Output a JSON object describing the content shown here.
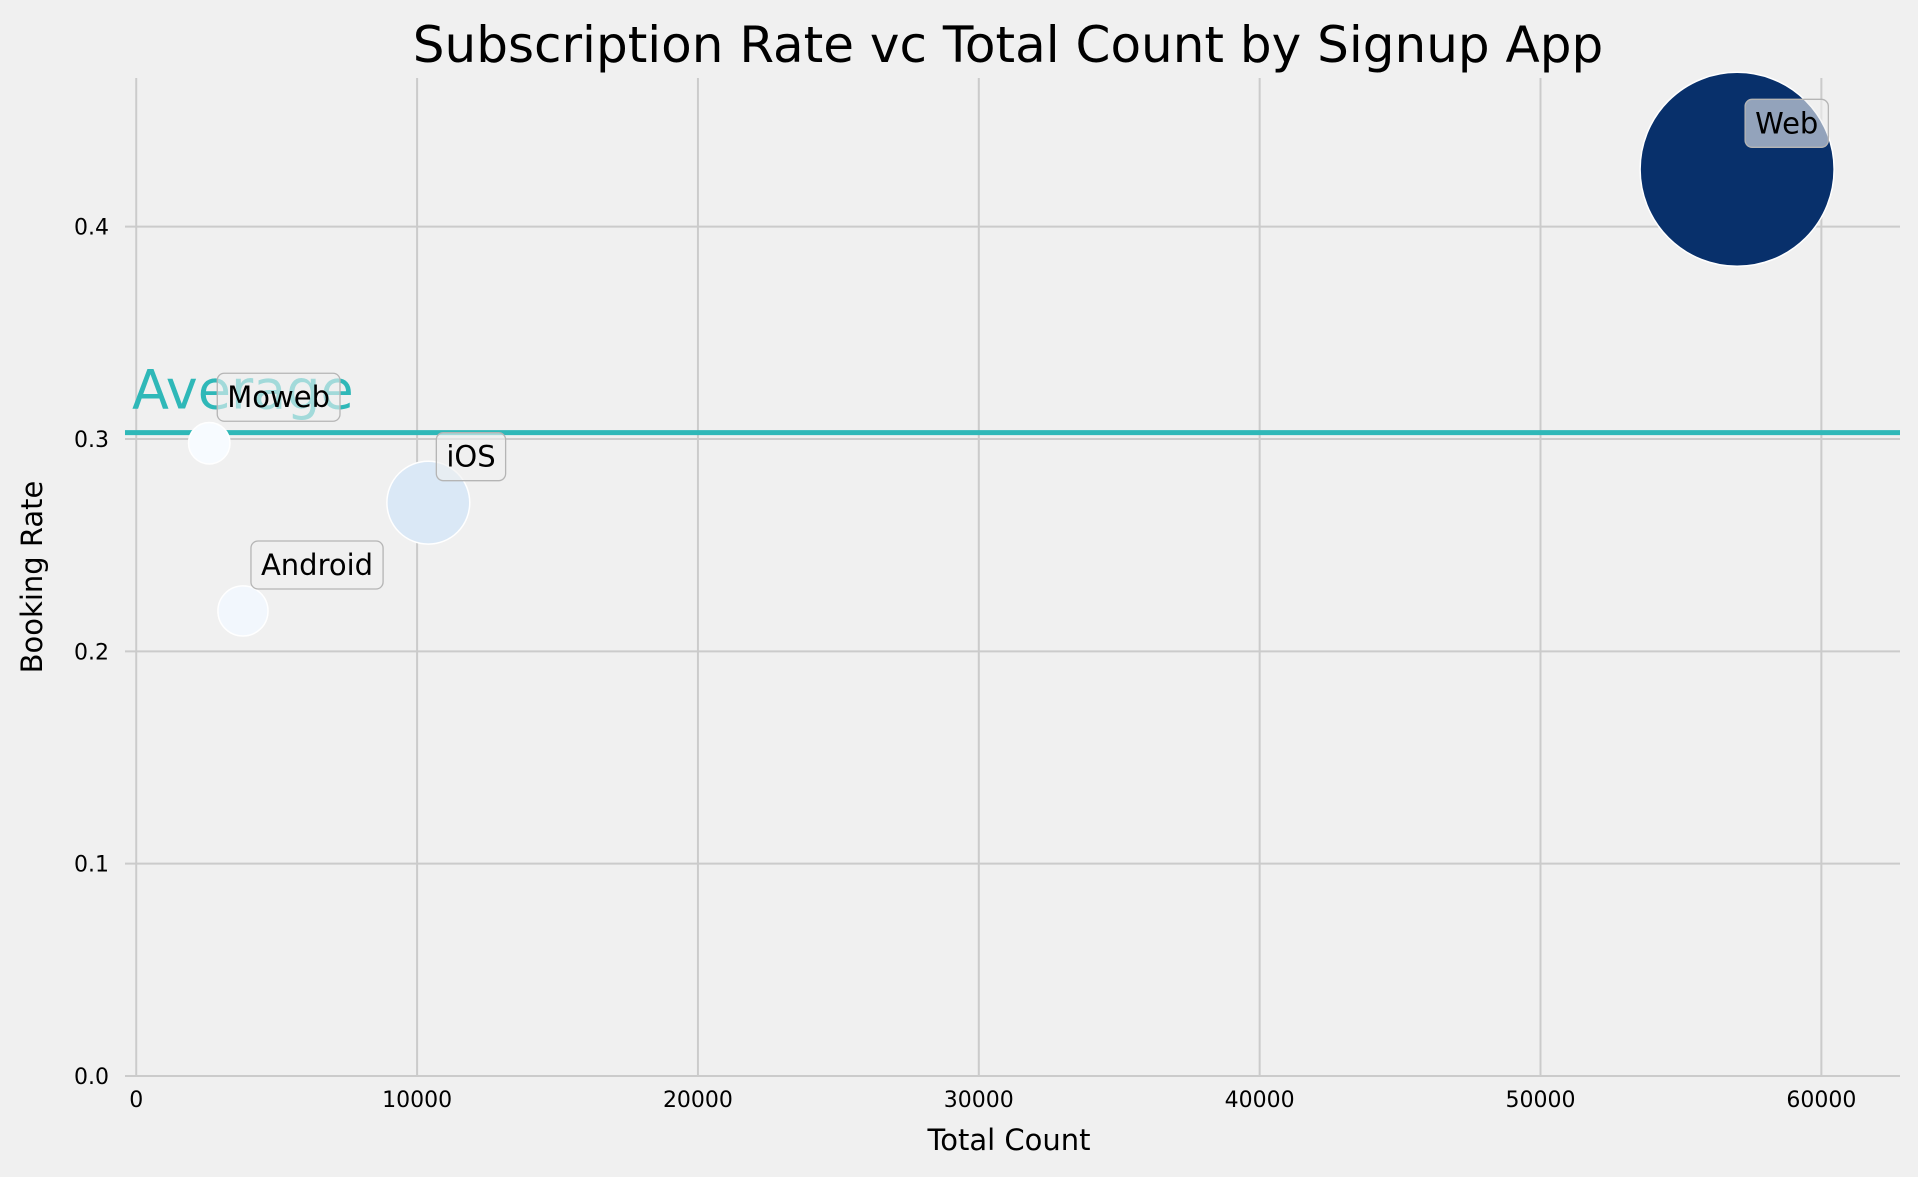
{
  "chart_data": {
    "type": "scatter",
    "title": "Subscription Rate vc Total Count by Signup App",
    "xlabel": "Total Count",
    "ylabel": "Booking Rate",
    "xlim": [
      -400,
      62800
    ],
    "ylim": [
      0.0,
      0.47
    ],
    "xticks": [
      0,
      10000,
      20000,
      30000,
      40000,
      50000,
      60000
    ],
    "yticks": [
      0.0,
      0.1,
      0.2,
      0.3,
      0.4
    ],
    "grid": true,
    "points": [
      {
        "label": "Moweb",
        "x": 2600,
        "y": 0.298,
        "color": "#f7fbff"
      },
      {
        "label": "Android",
        "x": 3800,
        "y": 0.219,
        "color": "#f2f7fd"
      },
      {
        "label": "iOS",
        "x": 10400,
        "y": 0.27,
        "color": "#dae8f6"
      },
      {
        "label": "Web",
        "x": 57000,
        "y": 0.427,
        "color": "#08306b"
      }
    ],
    "average": {
      "label": "Average",
      "y": 0.303,
      "color": "#2fb8b8"
    }
  }
}
